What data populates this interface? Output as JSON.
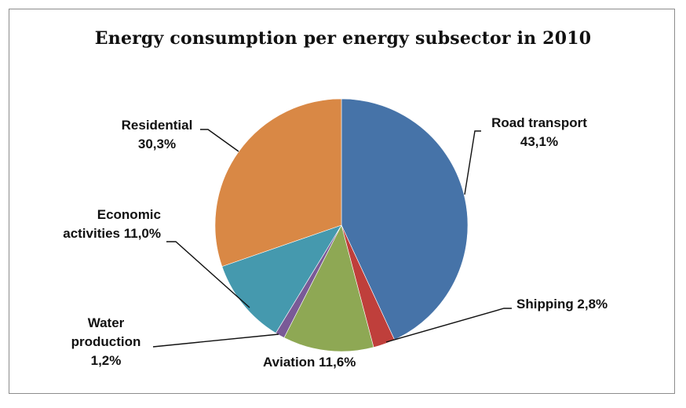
{
  "chart_data": {
    "type": "pie",
    "title": "Energy consumption per energy subsector in 2010",
    "legend": "none",
    "slices": [
      {
        "name": "Road transport",
        "value": 43.1,
        "label_lines": [
          "Road transport",
          "43,1%"
        ],
        "color": "#4673a8"
      },
      {
        "name": "Shipping",
        "value": 2.8,
        "label_lines": [
          "Shipping 2,8%"
        ],
        "color": "#bf3f3b"
      },
      {
        "name": "Aviation",
        "value": 11.6,
        "label_lines": [
          "Aviation 11,6%"
        ],
        "color": "#8ea854"
      },
      {
        "name": "Water production",
        "value": 1.2,
        "label_lines": [
          "Water",
          "production",
          "1,2%"
        ],
        "color": "#7a5a97"
      },
      {
        "name": "Economic activities",
        "value": 11.0,
        "label_lines": [
          "Economic",
          "activities 11,0%"
        ],
        "color": "#4599ae"
      },
      {
        "name": "Residential",
        "value": 30.3,
        "label_lines": [
          "Residential",
          "30,3%"
        ],
        "color": "#d98845"
      }
    ]
  }
}
